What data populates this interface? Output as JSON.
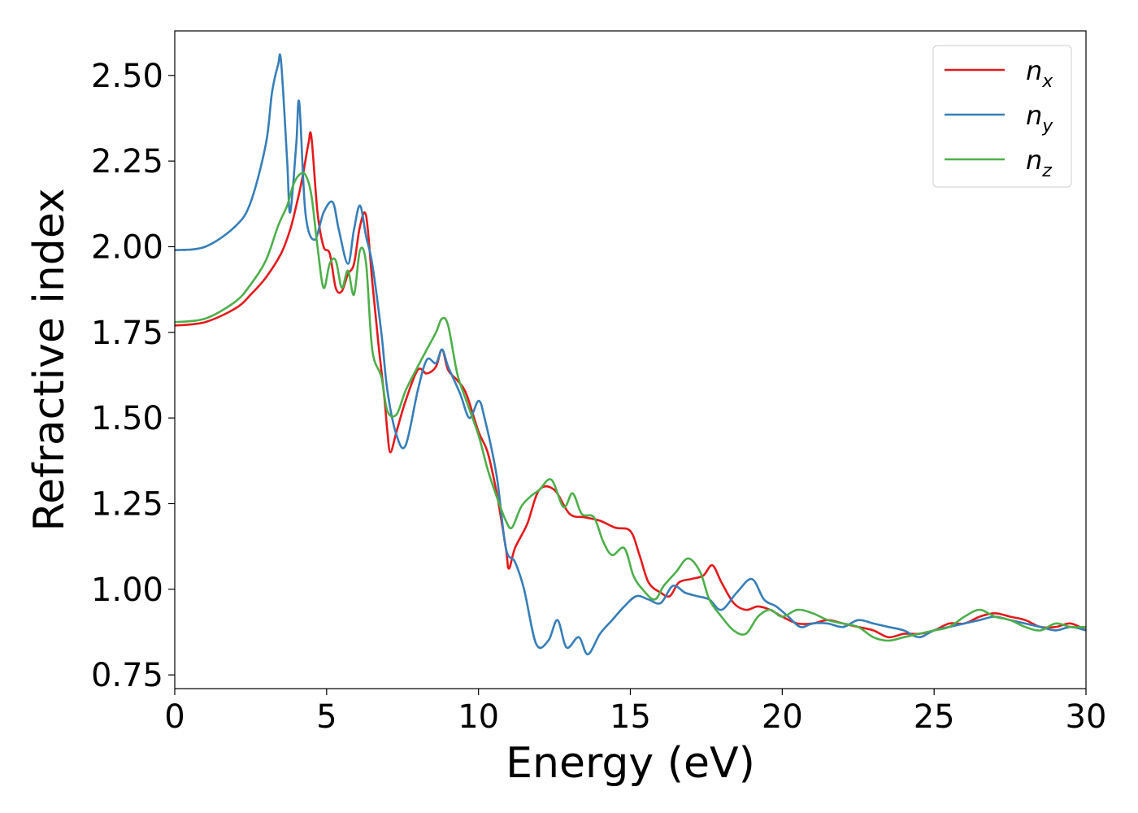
{
  "chart_data": {
    "type": "line",
    "title": "",
    "xlabel": "Energy (eV)",
    "ylabel": "Refractive index",
    "xlim": [
      0,
      30
    ],
    "ylim": [
      0.71,
      2.63
    ],
    "xticks": [
      0,
      5,
      10,
      15,
      20,
      25,
      30
    ],
    "xtick_labels": [
      "0",
      "5",
      "10",
      "15",
      "20",
      "25",
      "30"
    ],
    "yticks": [
      0.75,
      1.0,
      1.25,
      1.5,
      1.75,
      2.0,
      2.25,
      2.5
    ],
    "ytick_labels": [
      "0.75",
      "1.00",
      "1.25",
      "1.50",
      "1.75",
      "2.00",
      "2.25",
      "2.50"
    ],
    "grid": false,
    "legend_position": "top-right",
    "series": [
      {
        "name": "n",
        "subscript": "x",
        "color": "#e41a1c",
        "x": [
          0,
          1,
          2,
          2.5,
          3,
          3.5,
          3.8,
          4.0,
          4.2,
          4.4,
          4.5,
          4.7,
          4.9,
          5.1,
          5.3,
          5.5,
          5.7,
          5.9,
          6.1,
          6.3,
          6.5,
          6.7,
          6.9,
          7.0,
          7.1,
          7.3,
          7.6,
          8.0,
          8.3,
          8.6,
          8.8,
          9.0,
          9.3,
          9.6,
          10.0,
          10.3,
          10.6,
          10.9,
          11.0,
          11.2,
          11.6,
          12.0,
          12.5,
          13.0,
          13.5,
          14.0,
          14.5,
          15.0,
          15.3,
          15.6,
          16.0,
          16.3,
          16.6,
          17.0,
          17.4,
          17.7,
          18.0,
          18.4,
          18.8,
          19.2,
          19.6,
          20.0,
          20.5,
          21.0,
          21.5,
          22.0,
          22.5,
          23.0,
          23.5,
          24.0,
          24.5,
          25.0,
          25.5,
          26.0,
          26.5,
          27.0,
          27.5,
          28.0,
          28.5,
          29.0,
          29.5,
          30.0
        ],
        "y": [
          1.77,
          1.78,
          1.82,
          1.86,
          1.91,
          1.98,
          2.05,
          2.12,
          2.2,
          2.3,
          2.32,
          2.1,
          2.0,
          1.98,
          1.88,
          1.87,
          1.92,
          1.95,
          2.06,
          2.09,
          1.9,
          1.72,
          1.56,
          1.46,
          1.4,
          1.46,
          1.55,
          1.64,
          1.63,
          1.65,
          1.7,
          1.64,
          1.61,
          1.57,
          1.46,
          1.4,
          1.28,
          1.12,
          1.06,
          1.12,
          1.19,
          1.29,
          1.29,
          1.22,
          1.21,
          1.2,
          1.18,
          1.17,
          1.1,
          1.02,
          0.99,
          0.98,
          1.02,
          1.03,
          1.04,
          1.07,
          1.02,
          0.96,
          0.94,
          0.95,
          0.94,
          0.92,
          0.9,
          0.9,
          0.91,
          0.9,
          0.89,
          0.88,
          0.86,
          0.87,
          0.87,
          0.88,
          0.9,
          0.9,
          0.92,
          0.93,
          0.92,
          0.91,
          0.89,
          0.89,
          0.9,
          0.88
        ]
      },
      {
        "name": "n",
        "subscript": "y",
        "color": "#377eb8",
        "x": [
          0,
          1,
          2,
          2.5,
          3.0,
          3.2,
          3.4,
          3.5,
          3.7,
          3.8,
          4.0,
          4.1,
          4.3,
          4.6,
          4.9,
          5.2,
          5.4,
          5.7,
          5.9,
          6.1,
          6.3,
          6.5,
          6.8,
          7.0,
          7.3,
          7.6,
          8.0,
          8.3,
          8.6,
          8.8,
          9.0,
          9.4,
          9.7,
          10.0,
          10.2,
          10.6,
          10.9,
          11.2,
          11.5,
          11.9,
          12.3,
          12.6,
          12.9,
          13.3,
          13.6,
          14.0,
          14.4,
          14.8,
          15.2,
          15.6,
          16.0,
          16.4,
          16.8,
          17.2,
          17.6,
          18.0,
          18.5,
          19.0,
          19.4,
          19.8,
          20.2,
          20.6,
          21.0,
          21.5,
          22.0,
          22.5,
          23.0,
          23.5,
          24.0,
          24.5,
          25.0,
          25.5,
          26.0,
          26.5,
          27.0,
          27.5,
          28.0,
          28.5,
          29.0,
          29.5,
          30.0
        ],
        "y": [
          1.99,
          2.0,
          2.06,
          2.13,
          2.3,
          2.45,
          2.53,
          2.54,
          2.25,
          2.1,
          2.3,
          2.42,
          2.1,
          2.02,
          2.1,
          2.13,
          2.05,
          1.95,
          2.05,
          2.12,
          2.03,
          1.95,
          1.75,
          1.58,
          1.45,
          1.42,
          1.58,
          1.67,
          1.66,
          1.7,
          1.65,
          1.57,
          1.5,
          1.55,
          1.5,
          1.33,
          1.12,
          1.08,
          1.0,
          0.84,
          0.85,
          0.91,
          0.83,
          0.86,
          0.81,
          0.87,
          0.91,
          0.95,
          0.98,
          0.97,
          0.96,
          1.01,
          0.99,
          0.98,
          0.97,
          0.94,
          0.99,
          1.03,
          0.97,
          0.95,
          0.92,
          0.89,
          0.9,
          0.9,
          0.89,
          0.91,
          0.9,
          0.89,
          0.88,
          0.86,
          0.88,
          0.89,
          0.9,
          0.91,
          0.92,
          0.91,
          0.9,
          0.89,
          0.88,
          0.89,
          0.88
        ]
      },
      {
        "name": "n",
        "subscript": "z",
        "color": "#4daf4a",
        "x": [
          0,
          1,
          2,
          2.5,
          3.0,
          3.4,
          3.7,
          3.9,
          4.1,
          4.3,
          4.5,
          4.7,
          4.9,
          5.1,
          5.3,
          5.5,
          5.7,
          5.9,
          6.1,
          6.3,
          6.5,
          6.8,
          7.0,
          7.3,
          7.6,
          8.0,
          8.3,
          8.6,
          8.8,
          9.0,
          9.3,
          9.6,
          10.0,
          10.3,
          10.6,
          10.9,
          11.1,
          11.4,
          11.7,
          12.0,
          12.4,
          12.8,
          13.1,
          13.4,
          13.8,
          14.1,
          14.4,
          14.8,
          15.1,
          15.4,
          15.8,
          16.1,
          16.5,
          16.9,
          17.3,
          17.6,
          18.0,
          18.4,
          18.8,
          19.2,
          19.6,
          20.0,
          20.5,
          21.0,
          21.5,
          22.0,
          22.5,
          23.0,
          23.5,
          24.0,
          24.5,
          25.0,
          25.5,
          26.0,
          26.5,
          27.0,
          27.5,
          28.0,
          28.5,
          29.0,
          29.5,
          30.0
        ],
        "y": [
          1.78,
          1.79,
          1.84,
          1.89,
          1.96,
          2.06,
          2.12,
          2.18,
          2.21,
          2.21,
          2.15,
          2.0,
          1.88,
          1.95,
          1.96,
          1.88,
          1.93,
          1.86,
          1.99,
          1.95,
          1.7,
          1.62,
          1.52,
          1.51,
          1.58,
          1.65,
          1.7,
          1.75,
          1.79,
          1.77,
          1.63,
          1.55,
          1.45,
          1.35,
          1.27,
          1.2,
          1.18,
          1.24,
          1.27,
          1.29,
          1.32,
          1.24,
          1.28,
          1.22,
          1.21,
          1.14,
          1.1,
          1.12,
          1.04,
          1.0,
          0.97,
          1.01,
          1.05,
          1.09,
          1.05,
          0.97,
          0.92,
          0.88,
          0.87,
          0.92,
          0.94,
          0.92,
          0.94,
          0.93,
          0.91,
          0.9,
          0.89,
          0.86,
          0.85,
          0.86,
          0.87,
          0.88,
          0.89,
          0.92,
          0.94,
          0.92,
          0.91,
          0.89,
          0.88,
          0.9,
          0.89,
          0.89
        ]
      }
    ]
  }
}
